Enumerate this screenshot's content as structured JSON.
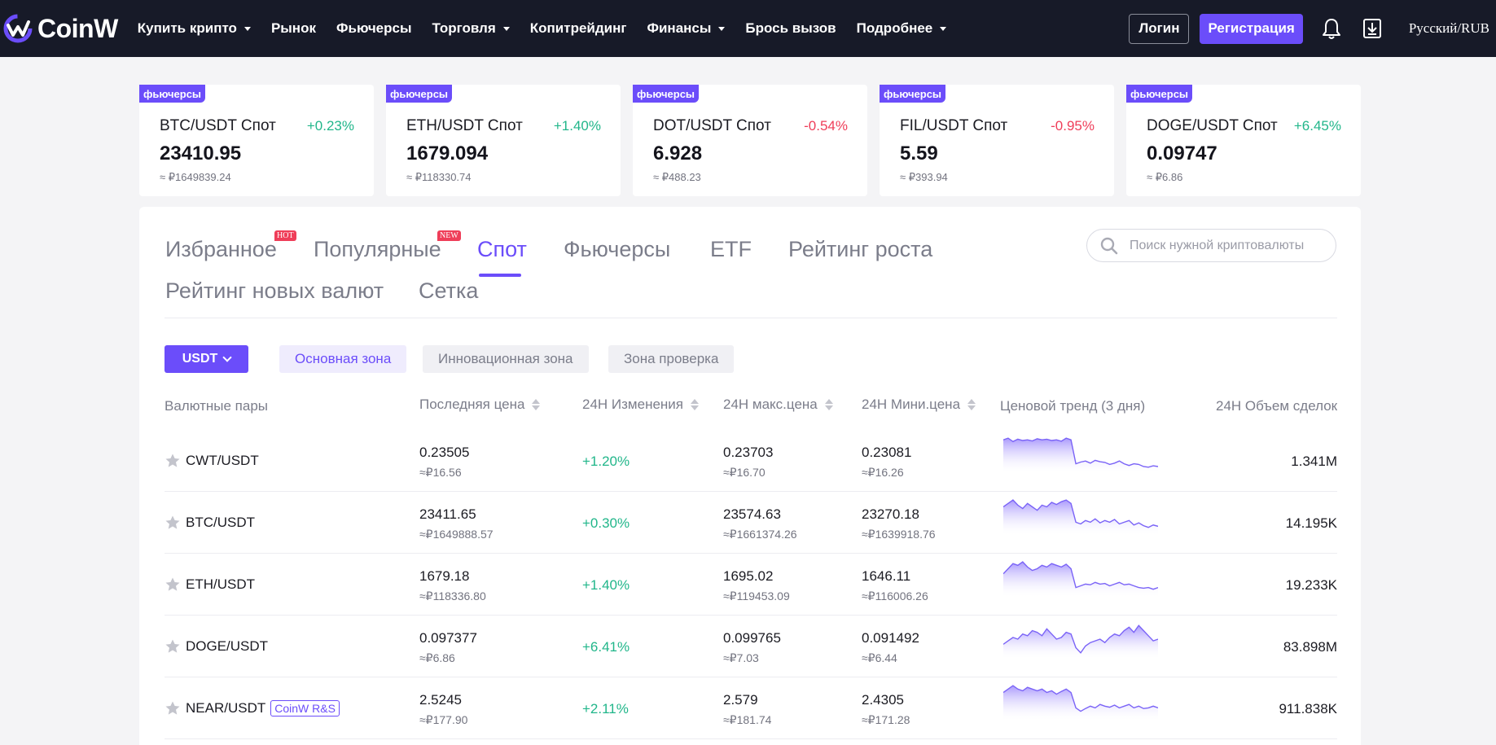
{
  "header": {
    "logo_text": "CoinW",
    "nav": [
      {
        "label": "Купить крипто",
        "dropdown": true
      },
      {
        "label": "Рынок",
        "dropdown": false
      },
      {
        "label": "Фьючерсы",
        "dropdown": false
      },
      {
        "label": "Торговля",
        "dropdown": true
      },
      {
        "label": "Копитрейдинг",
        "dropdown": false
      },
      {
        "label": "Финансы",
        "dropdown": true
      },
      {
        "label": "Брось вызов",
        "dropdown": false
      },
      {
        "label": "Подробнее",
        "dropdown": true
      }
    ],
    "login_label": "Логин",
    "register_label": "Регистрация",
    "language": "Русский/RUB"
  },
  "tickers": [
    {
      "badge": "фьючерсы",
      "pair": "BTC/USDT Спот",
      "change": "+0.23%",
      "direction": "up",
      "price": "23410.95",
      "fiat": "≈ ₽1649839.24"
    },
    {
      "badge": "фьючерсы",
      "pair": "ETH/USDT Спот",
      "change": "+1.40%",
      "direction": "up",
      "price": "1679.094",
      "fiat": "≈ ₽118330.74"
    },
    {
      "badge": "фьючерсы",
      "pair": "DOT/USDT Спот",
      "change": "-0.54%",
      "direction": "down",
      "price": "6.928",
      "fiat": "≈ ₽488.23"
    },
    {
      "badge": "фьючерсы",
      "pair": "FIL/USDT Спот",
      "change": "-0.95%",
      "direction": "down",
      "price": "5.59",
      "fiat": "≈ ₽393.94"
    },
    {
      "badge": "фьючерсы",
      "pair": "DOGE/USDT Спот",
      "change": "+6.45%",
      "direction": "up",
      "price": "0.09747",
      "fiat": "≈ ₽6.86"
    }
  ],
  "tabs": {
    "favorites": "Избранное",
    "favorites_badge": "HOT",
    "popular": "Популярные",
    "popular_badge": "NEW",
    "spot": "Спот",
    "futures": "Фьючерсы",
    "etf": "ETF",
    "growth": "Рейтинг роста",
    "new_coins": "Рейтинг новых валют",
    "grid": "Сетка",
    "active": "spot"
  },
  "search": {
    "placeholder": "Поиск нужной криптовалюты",
    "value": ""
  },
  "filters": {
    "quote": "USDT",
    "zones": [
      "Основная зона",
      "Инновационная зона",
      "Зона проверка"
    ],
    "active_zone": 0
  },
  "table": {
    "headers": {
      "pair": "Валютные пары",
      "last": "Последняя цена",
      "change": "24H Изменения",
      "high": "24H макс.цена",
      "low": "24H Мини.цена",
      "trend": "Ценовой тренд (3 дня)",
      "volume": "24H Объем сделок"
    },
    "rows": [
      {
        "pair": "CWT/USDT",
        "tag": "",
        "last": "0.23505",
        "last_fiat": "≈₽16.56",
        "change": "+1.20%",
        "direction": "up",
        "high": "0.23703",
        "high_fiat": "≈₽16.70",
        "low": "0.23081",
        "low_fiat": "≈₽16.26",
        "volume": "1.341M",
        "trend": [
          0.9,
          0.95,
          0.85,
          0.92,
          0.88,
          0.9,
          0.87,
          0.93,
          0.9,
          0.92,
          0.88,
          0.9,
          0.86,
          0.95,
          0.9,
          0.2,
          0.25,
          0.28,
          0.22,
          0.3,
          0.26,
          0.24,
          0.18,
          0.22,
          0.28,
          0.2,
          0.15,
          0.2,
          0.18,
          0.12,
          0.1,
          0.14,
          0.12
        ]
      },
      {
        "pair": "BTC/USDT",
        "tag": "",
        "last": "23411.65",
        "last_fiat": "≈₽1649888.57",
        "change": "+0.30%",
        "direction": "up",
        "high": "23574.63",
        "high_fiat": "≈₽1661374.26",
        "low": "23270.18",
        "low_fiat": "≈₽1639918.76",
        "volume": "14.195K",
        "trend": [
          0.75,
          0.85,
          0.95,
          0.8,
          0.7,
          0.85,
          0.75,
          0.65,
          0.8,
          0.75,
          0.88,
          0.82,
          0.9,
          0.95,
          0.85,
          0.3,
          0.25,
          0.35,
          0.3,
          0.4,
          0.28,
          0.35,
          0.3,
          0.38,
          0.25,
          0.3,
          0.35,
          0.22,
          0.28,
          0.2,
          0.15,
          0.22,
          0.18
        ]
      },
      {
        "pair": "ETH/USDT",
        "tag": "",
        "last": "1679.18",
        "last_fiat": "≈₽118336.80",
        "change": "+1.40%",
        "direction": "up",
        "high": "1695.02",
        "high_fiat": "≈₽119453.09",
        "low": "1646.11",
        "low_fiat": "≈₽116006.26",
        "volume": "19.233K",
        "trend": [
          0.6,
          0.75,
          0.9,
          0.85,
          0.95,
          0.8,
          0.7,
          0.75,
          0.85,
          0.8,
          0.9,
          0.85,
          0.8,
          0.88,
          0.75,
          0.2,
          0.25,
          0.3,
          0.28,
          0.35,
          0.3,
          0.32,
          0.25,
          0.3,
          0.35,
          0.28,
          0.3,
          0.25,
          0.2,
          0.18,
          0.2,
          0.15,
          0.2
        ]
      },
      {
        "pair": "DOGE/USDT",
        "tag": "",
        "last": "0.097377",
        "last_fiat": "≈₽6.86",
        "change": "+6.41%",
        "direction": "up",
        "high": "0.099765",
        "high_fiat": "≈₽7.03",
        "low": "0.091492",
        "low_fiat": "≈₽6.44",
        "volume": "83.898M",
        "trend": [
          0.35,
          0.45,
          0.55,
          0.5,
          0.65,
          0.6,
          0.75,
          0.7,
          0.6,
          0.8,
          0.65,
          0.5,
          0.55,
          0.7,
          0.65,
          0.25,
          0.1,
          0.3,
          0.4,
          0.45,
          0.5,
          0.4,
          0.55,
          0.65,
          0.6,
          0.75,
          0.85,
          0.7,
          0.9,
          0.75,
          0.6,
          0.45,
          0.5
        ]
      },
      {
        "pair": "NEAR/USDT",
        "tag": "CoinW R&S",
        "last": "2.5245",
        "last_fiat": "≈₽177.90",
        "change": "+2.11%",
        "direction": "up",
        "high": "2.579",
        "high_fiat": "≈₽181.74",
        "low": "2.4305",
        "low_fiat": "≈₽171.28",
        "volume": "911.838K",
        "trend": [
          0.75,
          0.85,
          0.95,
          0.85,
          0.8,
          0.9,
          0.85,
          0.8,
          0.85,
          0.75,
          0.8,
          0.7,
          0.78,
          0.85,
          0.75,
          0.3,
          0.2,
          0.28,
          0.35,
          0.3,
          0.4,
          0.35,
          0.32,
          0.38,
          0.3,
          0.35,
          0.4,
          0.3,
          0.35,
          0.28,
          0.3,
          0.35,
          0.3
        ]
      }
    ]
  },
  "colors": {
    "accent": "#6b4dfa",
    "up": "#21b68a",
    "down": "#ef3e59",
    "header_bg": "#171a28"
  }
}
